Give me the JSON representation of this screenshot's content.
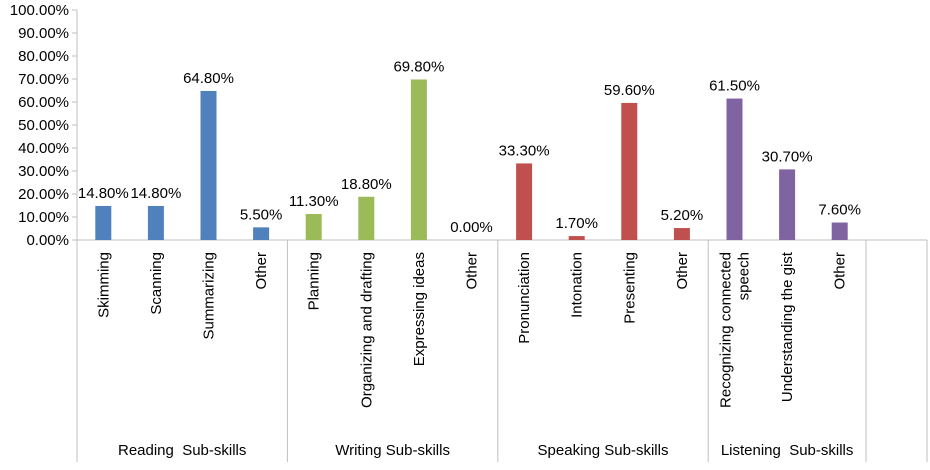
{
  "chart_data": {
    "type": "bar",
    "title": "",
    "xlabel": "",
    "ylabel": "",
    "ylim": [
      0,
      100
    ],
    "y_tick_labels": [
      "0.00%",
      "10.00%",
      "20.00%",
      "30.00%",
      "40.00%",
      "50.00%",
      "60.00%",
      "70.00%",
      "80.00%",
      "90.00%",
      "100.00%"
    ],
    "grid": false,
    "legend": "none",
    "groups": [
      {
        "name": "Reading  Sub-skills",
        "color": "#4f81bd",
        "categories": [
          "Skimming",
          "Scanning",
          "Summarizing",
          "Other"
        ],
        "values": [
          14.8,
          14.8,
          64.8,
          5.5
        ],
        "labels": [
          "14.80%",
          "14.80%",
          "64.80%",
          "5.50%"
        ]
      },
      {
        "name": "Writing Sub-skills",
        "color": "#9bbb59",
        "categories": [
          "Planning",
          "Organizing and drafting",
          "Expressing ideas",
          "Other"
        ],
        "values": [
          11.3,
          18.8,
          69.8,
          0.0
        ],
        "labels": [
          "11.30%",
          "18.80%",
          "69.80%",
          "0.00%"
        ]
      },
      {
        "name": "Speaking Sub-skills",
        "color": "#c0504d",
        "categories": [
          "Pronunciation",
          "Intonation",
          "Presenting",
          "Other"
        ],
        "values": [
          33.3,
          1.7,
          59.6,
          5.2
        ],
        "labels": [
          "33.30%",
          "1.70%",
          "59.60%",
          "5.20%"
        ]
      },
      {
        "name": "Listening  Sub-skills",
        "color": "#8064a2",
        "categories": [
          [
            "Recognizing connected",
            "speech"
          ],
          "Understanding the gist",
          "Other"
        ],
        "values": [
          61.5,
          30.7,
          7.6
        ],
        "labels": [
          "61.50%",
          "30.70%",
          "7.60%"
        ]
      }
    ]
  }
}
